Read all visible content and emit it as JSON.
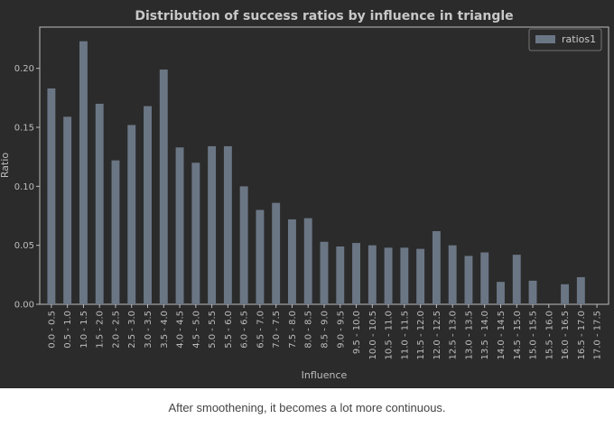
{
  "chart_data": {
    "type": "bar",
    "title": "Distribution of success ratios by influence in triangle",
    "xlabel": "Influence",
    "ylabel": "Ratio",
    "ylim": [
      0,
      0.235
    ],
    "yticks": [
      0.0,
      0.05,
      0.1,
      0.15,
      0.2
    ],
    "ytick_labels": [
      "0.00",
      "0.05",
      "0.10",
      "0.15",
      "0.20"
    ],
    "legend": "top-right",
    "grid": false,
    "categories": [
      "0.0 - 0.5",
      "0.5 - 1.0",
      "1.0 - 1.5",
      "1.5 - 2.0",
      "2.0 - 2.5",
      "2.5 - 3.0",
      "3.0 - 3.5",
      "3.5 - 4.0",
      "4.0 - 4.5",
      "4.5 - 5.0",
      "5.0 - 5.5",
      "5.5 - 6.0",
      "6.0 - 6.5",
      "6.5 - 7.0",
      "7.0 - 7.5",
      "7.5 - 8.0",
      "8.0 - 8.5",
      "8.5 - 9.0",
      "9.0 - 9.5",
      "9.5 - 10.0",
      "10.0 - 10.5",
      "10.5 - 11.0",
      "11.0 - 11.5",
      "11.5 - 12.0",
      "12.0 - 12.5",
      "12.5 - 13.0",
      "13.0 - 13.5",
      "13.5 - 14.0",
      "14.0 - 14.5",
      "14.5 - 15.0",
      "15.0 - 15.5",
      "15.5 - 16.0",
      "16.0 - 16.5",
      "16.5 - 17.0",
      "17.0 - 17.5"
    ],
    "series": [
      {
        "name": "ratios1",
        "color": "#6b7685",
        "values": [
          0.183,
          0.159,
          0.223,
          0.17,
          0.122,
          0.152,
          0.168,
          0.199,
          0.133,
          0.12,
          0.134,
          0.134,
          0.1,
          0.08,
          0.086,
          0.072,
          0.073,
          0.053,
          0.049,
          0.052,
          0.05,
          0.048,
          0.048,
          0.047,
          0.062,
          0.05,
          0.041,
          0.044,
          0.019,
          0.042,
          0.02,
          0.0,
          0.017,
          0.023,
          0.0
        ]
      }
    ]
  },
  "caption": "After smoothening, it becomes a lot more continuous."
}
